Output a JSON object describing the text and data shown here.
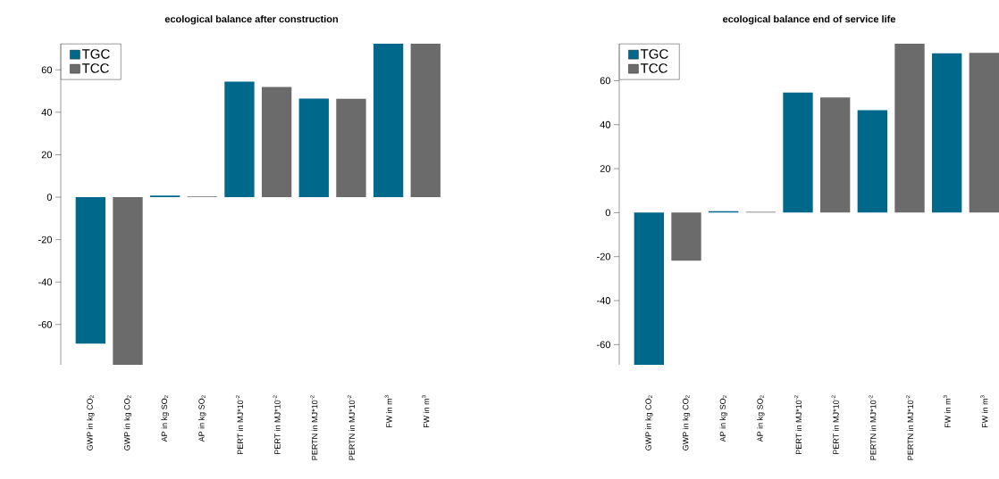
{
  "chart_data": [
    {
      "type": "bar",
      "title": "ecological balance after construction",
      "categories": [
        "GWP in kg CO$_{2}$",
        "GWP in kg CO$_{2}$",
        "AP in kg SO$_{2}$",
        "AP in kg SO$_{2}$",
        "PERT in MJ*10$^{-2}$",
        "PERT in MJ*10$^{-2}$",
        "PERTN in MJ*10$^{-2}$",
        "PERTN in MJ*10$^{-2}$",
        "FW in m$^{3}$",
        "FW in m$^{3}$"
      ],
      "series": [
        {
          "name": "TGC",
          "color": "#00688b",
          "values": [
            -69,
            null,
            0.7,
            null,
            54.4,
            null,
            46.5,
            null,
            72.3,
            null
          ]
        },
        {
          "name": "TCC",
          "color": "#6b6b6b",
          "values": [
            null,
            -79,
            null,
            0.3,
            null,
            51.9,
            null,
            46.3,
            null,
            72.3
          ]
        }
      ],
      "ylim": [
        -79,
        72.3
      ],
      "yticks": [
        -60,
        -40,
        -20,
        0,
        20,
        40,
        60
      ],
      "legend": "top left"
    },
    {
      "type": "bar",
      "title": "ecological balance end of service life",
      "categories": [
        "GWP in kg CO$_{2}$",
        "GWP in kg CO$_{2}$",
        "AP in kg SO$_{2}$",
        "AP in kg SO$_{2}$",
        "PERT in MJ*10$^{-2}$",
        "PERT in MJ*10$^{-2}$",
        "PERTN in MJ*10$^{-2}$",
        "PERTN in MJ*10$^{-2}$",
        "FW in m$^{3}$",
        "FW in m$^{3}$"
      ],
      "series": [
        {
          "name": "TGC",
          "color": "#00688b",
          "values": [
            -69.2,
            null,
            0.7,
            null,
            54.6,
            null,
            46.6,
            null,
            72.4,
            null
          ]
        },
        {
          "name": "TCC",
          "color": "#6b6b6b",
          "values": [
            null,
            -21.9,
            null,
            0.4,
            null,
            52.4,
            null,
            76.8,
            null,
            72.6
          ]
        }
      ],
      "ylim": [
        -69.2,
        76.8
      ],
      "yticks": [
        -60,
        -40,
        -20,
        0,
        20,
        40,
        60
      ],
      "legend": "top left"
    }
  ]
}
